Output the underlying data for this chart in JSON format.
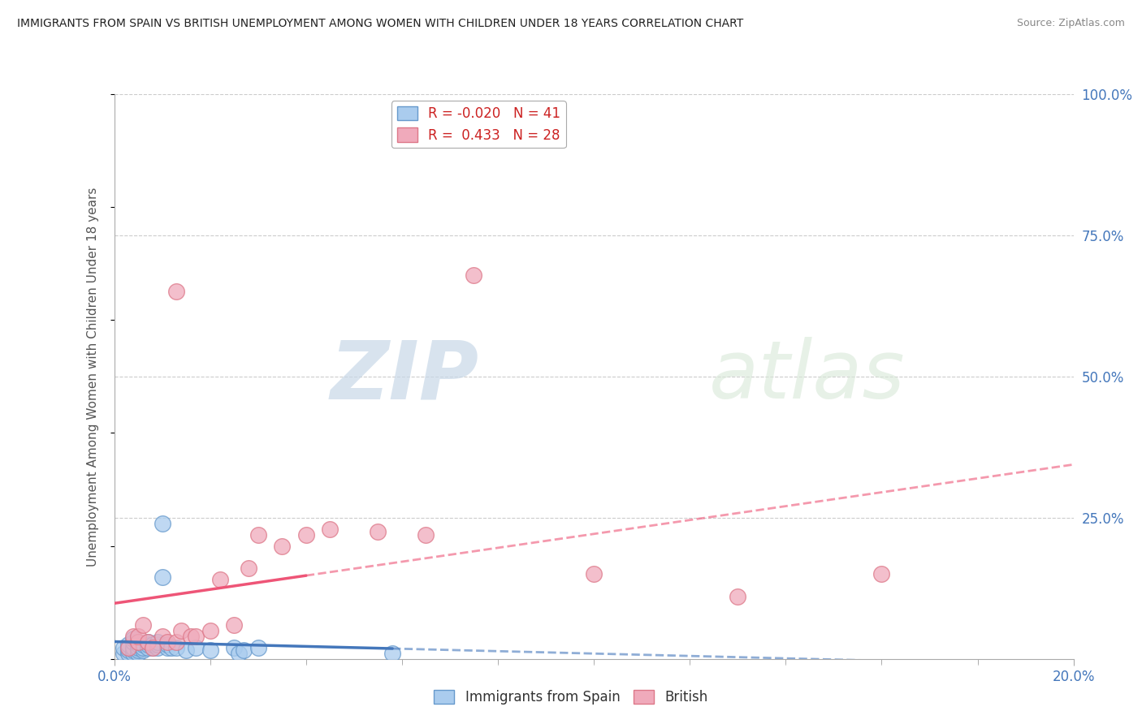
{
  "title": "IMMIGRANTS FROM SPAIN VS BRITISH UNEMPLOYMENT AMONG WOMEN WITH CHILDREN UNDER 18 YEARS CORRELATION CHART",
  "source": "Source: ZipAtlas.com",
  "ylabel": "Unemployment Among Women with Children Under 18 years",
  "r_blue": -0.02,
  "n_blue": 41,
  "r_pink": 0.433,
  "n_pink": 28,
  "xmin": 0.0,
  "xmax": 0.2,
  "ymin": 0.0,
  "ymax": 1.0,
  "watermark_zip": "ZIP",
  "watermark_atlas": "atlas",
  "color_blue": "#aaccee",
  "color_blue_edge": "#6699cc",
  "color_pink": "#f0aabb",
  "color_pink_edge": "#dd7788",
  "color_line_blue": "#4477bb",
  "color_line_pink": "#ee5577",
  "background_color": "#ffffff",
  "grid_color": "#cccccc",
  "blue_scatter_x": [
    0.002,
    0.002,
    0.003,
    0.003,
    0.003,
    0.003,
    0.004,
    0.004,
    0.004,
    0.004,
    0.004,
    0.005,
    0.005,
    0.005,
    0.005,
    0.005,
    0.006,
    0.006,
    0.006,
    0.007,
    0.007,
    0.007,
    0.008,
    0.008,
    0.009,
    0.009,
    0.009,
    0.01,
    0.01,
    0.011,
    0.011,
    0.012,
    0.013,
    0.015,
    0.017,
    0.02,
    0.025,
    0.026,
    0.027,
    0.03,
    0.058
  ],
  "blue_scatter_y": [
    0.01,
    0.02,
    0.01,
    0.015,
    0.02,
    0.025,
    0.01,
    0.015,
    0.02,
    0.03,
    0.035,
    0.01,
    0.015,
    0.02,
    0.025,
    0.03,
    0.015,
    0.02,
    0.025,
    0.02,
    0.025,
    0.03,
    0.02,
    0.025,
    0.02,
    0.025,
    0.03,
    0.145,
    0.24,
    0.02,
    0.025,
    0.02,
    0.02,
    0.015,
    0.02,
    0.015,
    0.02,
    0.01,
    0.015,
    0.02,
    0.01
  ],
  "pink_scatter_x": [
    0.003,
    0.004,
    0.005,
    0.005,
    0.006,
    0.007,
    0.008,
    0.01,
    0.011,
    0.013,
    0.013,
    0.014,
    0.016,
    0.017,
    0.02,
    0.022,
    0.025,
    0.028,
    0.03,
    0.035,
    0.04,
    0.045,
    0.055,
    0.065,
    0.075,
    0.1,
    0.13,
    0.16
  ],
  "pink_scatter_y": [
    0.02,
    0.04,
    0.03,
    0.04,
    0.06,
    0.03,
    0.02,
    0.04,
    0.03,
    0.65,
    0.03,
    0.05,
    0.04,
    0.04,
    0.05,
    0.14,
    0.06,
    0.16,
    0.22,
    0.2,
    0.22,
    0.23,
    0.225,
    0.22,
    0.68,
    0.15,
    0.11,
    0.15
  ]
}
